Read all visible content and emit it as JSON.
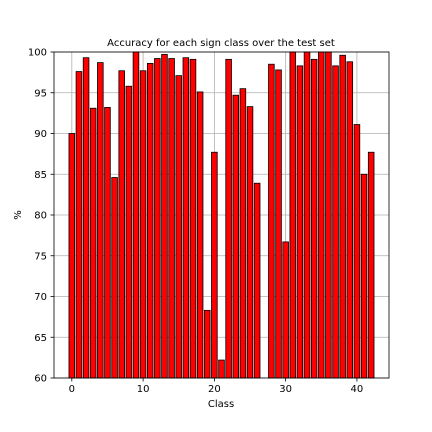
{
  "chart_data": {
    "type": "bar",
    "title": "Accuracy for each sign class over the test set",
    "xlabel": "Class",
    "ylabel": "%",
    "xlim": [
      -2.5,
      44.5
    ],
    "ylim": [
      60,
      100
    ],
    "xticks": [
      0,
      10,
      20,
      30,
      40
    ],
    "yticks": [
      60,
      65,
      70,
      75,
      80,
      85,
      90,
      95,
      100
    ],
    "grid": true,
    "bar_color": "#ff0000",
    "edge_color": "#000000",
    "categories": [
      0,
      1,
      2,
      3,
      4,
      5,
      6,
      7,
      8,
      9,
      10,
      11,
      12,
      13,
      14,
      15,
      16,
      17,
      18,
      19,
      20,
      21,
      22,
      23,
      24,
      25,
      26,
      27,
      28,
      29,
      30,
      31,
      32,
      33,
      34,
      35,
      36,
      37,
      38,
      39,
      40,
      41,
      42
    ],
    "values": [
      90.0,
      97.6,
      99.3,
      93.1,
      98.7,
      93.2,
      84.6,
      97.7,
      95.8,
      100.0,
      97.7,
      98.6,
      99.2,
      99.7,
      99.2,
      97.1,
      99.3,
      99.1,
      95.1,
      68.3,
      87.7,
      62.2,
      99.1,
      94.7,
      95.5,
      93.3,
      83.9,
      60.0,
      98.5,
      97.8,
      76.7,
      100.0,
      98.3,
      100.0,
      99.1,
      100.0,
      100.0,
      98.3,
      99.6,
      98.8,
      91.1,
      85.0,
      87.7
    ]
  }
}
